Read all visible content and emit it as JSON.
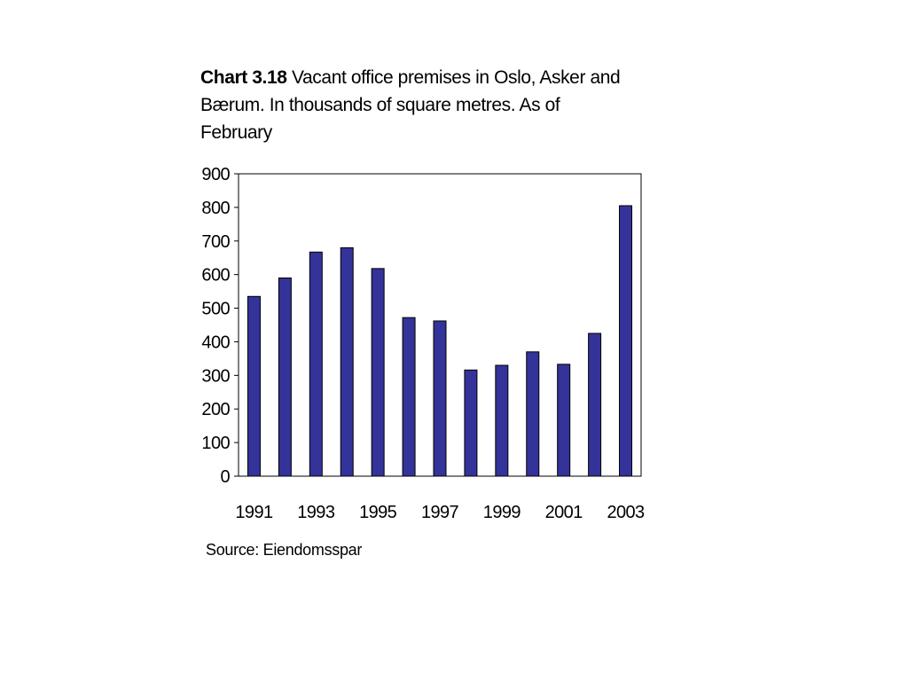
{
  "chart_data": {
    "type": "bar",
    "title_bold": "Chart 3.18",
    "title": "Vacant office premises in Oslo, Asker and Bærum. In thousands of square metres. As of February",
    "xlabel": "",
    "ylabel": "",
    "categories": [
      "1991",
      "1992",
      "1993",
      "1994",
      "1995",
      "1996",
      "1997",
      "1998",
      "1999",
      "2000",
      "2001",
      "2002",
      "2003"
    ],
    "x_tick_labels": [
      "1991",
      "1993",
      "1995",
      "1997",
      "1999",
      "2001",
      "2003"
    ],
    "values": [
      535,
      590,
      667,
      680,
      618,
      472,
      462,
      316,
      330,
      370,
      333,
      425,
      805
    ],
    "ylim": [
      0,
      900
    ],
    "y_ticks": [
      0,
      100,
      200,
      300,
      400,
      500,
      600,
      700,
      800,
      900
    ],
    "grid": false,
    "bar_color": "#333399",
    "source": "Source: Eiendomsspar"
  }
}
